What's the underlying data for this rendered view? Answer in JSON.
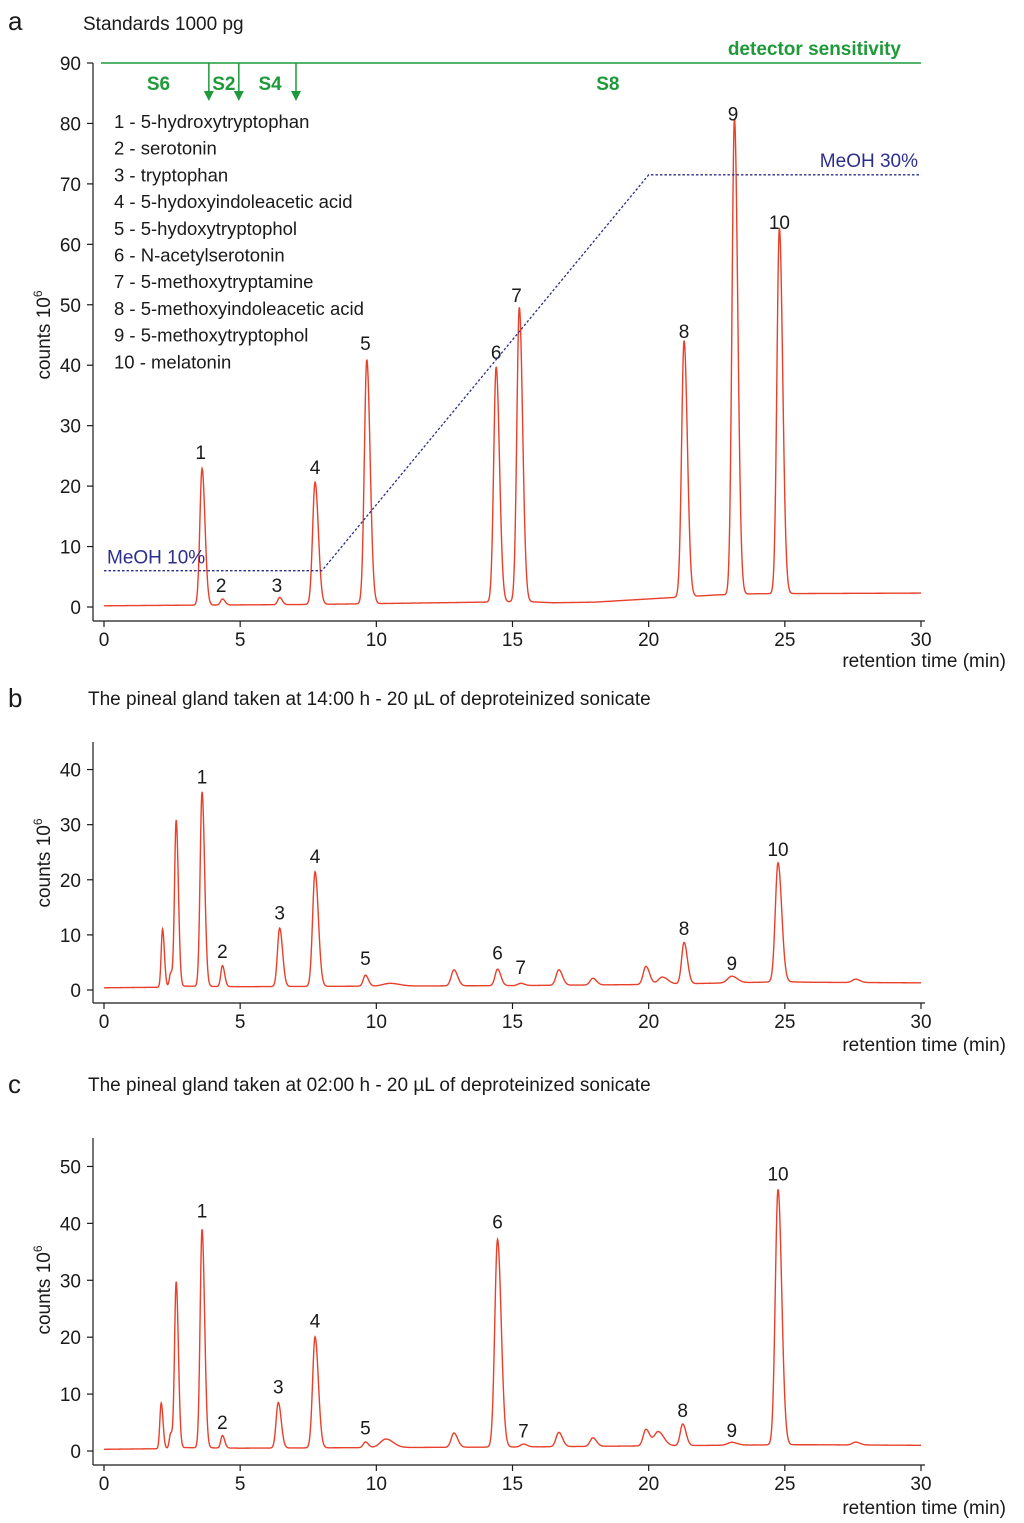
{
  "chart_data": [
    {
      "type": "line",
      "panel": "a",
      "title": "Standards 1000 pg",
      "xlabel": "retention time (min)",
      "ylabel": "counts 10",
      "ylabel_superscript": "6",
      "xlim": [
        0,
        30
      ],
      "ylim": [
        0,
        90
      ],
      "xticks": [
        0,
        5,
        10,
        15,
        20,
        25,
        30
      ],
      "yticks": [
        0,
        10,
        20,
        30,
        40,
        50,
        60,
        70,
        80,
        90
      ],
      "baseline": [
        [
          0,
          0.2
        ],
        [
          3.0,
          0.3
        ],
        [
          7.0,
          0.4
        ],
        [
          9.0,
          0.5
        ],
        [
          15.5,
          0.9
        ],
        [
          16.5,
          0.7
        ],
        [
          18,
          0.8
        ],
        [
          21,
          1.6
        ],
        [
          22.5,
          2.0
        ],
        [
          24,
          2.2
        ],
        [
          30,
          2.3
        ]
      ],
      "peaks": [
        {
          "label": "1",
          "x": 3.6,
          "height": 22.6,
          "width": 0.08
        },
        {
          "label": "2",
          "x": 4.35,
          "height": 1.0,
          "width": 0.07
        },
        {
          "label": "3",
          "x": 6.45,
          "height": 1.2,
          "width": 0.07
        },
        {
          "label": "4",
          "x": 7.75,
          "height": 20.2,
          "width": 0.09
        },
        {
          "label": "5",
          "x": 9.65,
          "height": 40.4,
          "width": 0.09
        },
        {
          "label": "6",
          "x": 14.4,
          "height": 38.9,
          "width": 0.09
        },
        {
          "label": "7",
          "x": 15.25,
          "height": 48.7,
          "width": 0.09
        },
        {
          "label": "8",
          "x": 21.3,
          "height": 42.4,
          "width": 0.09
        },
        {
          "label": "9",
          "x": 23.15,
          "height": 78.7,
          "width": 0.09
        },
        {
          "label": "10",
          "x": 24.8,
          "height": 60.5,
          "width": 0.09
        }
      ],
      "peak_label_positions": [
        {
          "label": "1",
          "x": 3.55,
          "y": 24.5
        },
        {
          "label": "2",
          "x": 4.3,
          "y": 2.5
        },
        {
          "label": "3",
          "x": 6.35,
          "y": 2.5
        },
        {
          "label": "4",
          "x": 7.75,
          "y": 22.0
        },
        {
          "label": "5",
          "x": 9.6,
          "y": 42.5
        },
        {
          "label": "6",
          "x": 14.4,
          "y": 41.0
        },
        {
          "label": "7",
          "x": 15.15,
          "y": 50.5
        },
        {
          "label": "8",
          "x": 21.3,
          "y": 44.5
        },
        {
          "label": "9",
          "x": 23.1,
          "y": 80.5
        },
        {
          "label": "10",
          "x": 24.8,
          "y": 62.5
        }
      ],
      "meoh_gradient": {
        "points": [
          [
            0,
            6
          ],
          [
            8,
            6
          ],
          [
            20,
            71.5
          ],
          [
            30,
            71.5
          ]
        ],
        "label_start": "MeOH 10%",
        "label_end": "MeOH 30%"
      },
      "detector_sensitivity": {
        "label": "detector sensitivity",
        "level": 90,
        "switch_times": [
          3.85,
          4.95,
          7.05
        ],
        "segments": [
          {
            "label": "S6",
            "x": 2.0
          },
          {
            "label": "S2",
            "x": 4.4
          },
          {
            "label": "S4",
            "x": 6.1
          },
          {
            "label": "S8",
            "x": 18.5
          }
        ]
      },
      "legend": [
        "1 - 5-hydroxytryptophan",
        "2 - serotonin",
        "3 - tryptophan",
        "4 - 5-hydoxyindoleacetic acid",
        "5 - 5-hydoxytryptophol",
        "6 - N-acetylserotonin",
        "7 - 5-methoxytryptamine",
        "8 - 5-methoxyindoleacetic acid",
        "9 - 5-methoxytryptophol",
        "10 - melatonin"
      ]
    },
    {
      "type": "line",
      "panel": "b",
      "title": "The pineal gland taken at 14:00 h - 20 µL of deproteinized sonicate",
      "xlabel": "retention time (min)",
      "ylabel": "counts 10",
      "ylabel_superscript": "6",
      "xlim": [
        0,
        30
      ],
      "ylim": [
        0,
        45
      ],
      "xticks": [
        0,
        5,
        10,
        15,
        20,
        25,
        30
      ],
      "yticks": [
        0,
        10,
        20,
        30,
        40
      ],
      "baseline": [
        [
          0,
          0.4
        ],
        [
          2.0,
          0.5
        ],
        [
          3.0,
          0.7
        ],
        [
          5.0,
          0.6
        ],
        [
          10,
          0.7
        ],
        [
          15,
          0.8
        ],
        [
          20,
          1.0
        ],
        [
          25,
          1.5
        ],
        [
          26,
          1.4
        ],
        [
          30,
          1.3
        ]
      ],
      "peaks": [
        {
          "label": "",
          "x": 2.15,
          "height": 10.5,
          "width": 0.05
        },
        {
          "label": "",
          "x": 2.45,
          "height": 2.5,
          "width": 0.05
        },
        {
          "label": "",
          "x": 2.65,
          "height": 30.2,
          "width": 0.06
        },
        {
          "label": "1",
          "x": 3.6,
          "height": 35.3,
          "width": 0.07
        },
        {
          "label": "2",
          "x": 4.35,
          "height": 3.8,
          "width": 0.06
        },
        {
          "label": "3",
          "x": 6.45,
          "height": 10.6,
          "width": 0.08
        },
        {
          "label": "4",
          "x": 7.75,
          "height": 20.8,
          "width": 0.09
        },
        {
          "label": "5",
          "x": 9.6,
          "height": 2.0,
          "width": 0.08
        },
        {
          "label": "",
          "x": 10.5,
          "height": 0.5,
          "width": 0.25
        },
        {
          "label": "",
          "x": 12.85,
          "height": 2.9,
          "width": 0.1
        },
        {
          "label": "6",
          "x": 14.45,
          "height": 3.0,
          "width": 0.09
        },
        {
          "label": "7",
          "x": 15.3,
          "height": 0.4,
          "width": 0.1
        },
        {
          "label": "",
          "x": 16.7,
          "height": 2.8,
          "width": 0.1
        },
        {
          "label": "",
          "x": 17.95,
          "height": 1.2,
          "width": 0.1
        },
        {
          "label": "",
          "x": 19.9,
          "height": 3.3,
          "width": 0.1
        },
        {
          "label": "",
          "x": 20.5,
          "height": 1.3,
          "width": 0.15
        },
        {
          "label": "8",
          "x": 21.3,
          "height": 7.5,
          "width": 0.09
        },
        {
          "label": "9",
          "x": 23.05,
          "height": 1.2,
          "width": 0.15
        },
        {
          "label": "10",
          "x": 24.75,
          "height": 21.6,
          "width": 0.1
        },
        {
          "label": "",
          "x": 27.6,
          "height": 0.6,
          "width": 0.12
        }
      ],
      "peak_label_positions": [
        {
          "label": "1",
          "x": 3.6,
          "y": 37.5
        },
        {
          "label": "2",
          "x": 4.35,
          "y": 5.8
        },
        {
          "label": "3",
          "x": 6.45,
          "y": 12.8
        },
        {
          "label": "4",
          "x": 7.75,
          "y": 23.0
        },
        {
          "label": "5",
          "x": 9.6,
          "y": 4.5
        },
        {
          "label": "6",
          "x": 14.45,
          "y": 5.5
        },
        {
          "label": "7",
          "x": 15.3,
          "y": 2.9
        },
        {
          "label": "8",
          "x": 21.3,
          "y": 10.0
        },
        {
          "label": "9",
          "x": 23.05,
          "y": 3.6
        },
        {
          "label": "10",
          "x": 24.75,
          "y": 24.3
        }
      ]
    },
    {
      "type": "line",
      "panel": "c",
      "title": "The pineal gland taken at 02:00 h - 20 µL of deproteinized sonicate",
      "xlabel": "retention time (min)",
      "ylabel": "counts 10",
      "ylabel_superscript": "6",
      "xlim": [
        0,
        30
      ],
      "ylim": [
        0,
        55
      ],
      "xticks": [
        0,
        5,
        10,
        15,
        20,
        25,
        30
      ],
      "yticks": [
        0,
        10,
        20,
        30,
        40,
        50
      ],
      "baseline": [
        [
          0,
          0.3
        ],
        [
          2.0,
          0.4
        ],
        [
          3.0,
          0.6
        ],
        [
          5.0,
          0.5
        ],
        [
          10,
          0.6
        ],
        [
          15,
          0.7
        ],
        [
          20,
          0.9
        ],
        [
          25,
          1.1
        ],
        [
          26,
          1.1
        ],
        [
          30,
          1.0
        ]
      ],
      "peaks": [
        {
          "label": "",
          "x": 2.1,
          "height": 8.0,
          "width": 0.05
        },
        {
          "label": "",
          "x": 2.45,
          "height": 2.6,
          "width": 0.05
        },
        {
          "label": "",
          "x": 2.65,
          "height": 29.2,
          "width": 0.06
        },
        {
          "label": "1",
          "x": 3.6,
          "height": 38.4,
          "width": 0.07
        },
        {
          "label": "2",
          "x": 4.35,
          "height": 2.2,
          "width": 0.06
        },
        {
          "label": "3",
          "x": 6.4,
          "height": 8.0,
          "width": 0.08
        },
        {
          "label": "4",
          "x": 7.75,
          "height": 19.5,
          "width": 0.09
        },
        {
          "label": "5",
          "x": 9.6,
          "height": 1.0,
          "width": 0.08
        },
        {
          "label": "",
          "x": 10.35,
          "height": 1.5,
          "width": 0.2
        },
        {
          "label": "",
          "x": 12.85,
          "height": 2.5,
          "width": 0.1
        },
        {
          "label": "6",
          "x": 14.45,
          "height": 36.5,
          "width": 0.1
        },
        {
          "label": "7",
          "x": 15.4,
          "height": 0.5,
          "width": 0.1
        },
        {
          "label": "",
          "x": 16.7,
          "height": 2.5,
          "width": 0.1
        },
        {
          "label": "",
          "x": 17.95,
          "height": 1.5,
          "width": 0.1
        },
        {
          "label": "",
          "x": 19.9,
          "height": 2.9,
          "width": 0.1
        },
        {
          "label": "",
          "x": 20.35,
          "height": 2.5,
          "width": 0.15
        },
        {
          "label": "8",
          "x": 21.25,
          "height": 3.8,
          "width": 0.09
        },
        {
          "label": "9",
          "x": 23.05,
          "height": 0.5,
          "width": 0.15
        },
        {
          "label": "10",
          "x": 24.75,
          "height": 44.9,
          "width": 0.1
        },
        {
          "label": "",
          "x": 27.6,
          "height": 0.5,
          "width": 0.12
        }
      ],
      "peak_label_positions": [
        {
          "label": "1",
          "x": 3.6,
          "y": 41.0
        },
        {
          "label": "2",
          "x": 4.35,
          "y": 3.9
        },
        {
          "label": "3",
          "x": 6.4,
          "y": 10.1
        },
        {
          "label": "4",
          "x": 7.75,
          "y": 21.7
        },
        {
          "label": "5",
          "x": 9.6,
          "y": 2.9
        },
        {
          "label": "6",
          "x": 14.45,
          "y": 39.1
        },
        {
          "label": "7",
          "x": 15.4,
          "y": 2.4
        },
        {
          "label": "8",
          "x": 21.25,
          "y": 6.0
        },
        {
          "label": "9",
          "x": 23.05,
          "y": 2.5
        },
        {
          "label": "10",
          "x": 24.75,
          "y": 47.5
        }
      ]
    }
  ]
}
